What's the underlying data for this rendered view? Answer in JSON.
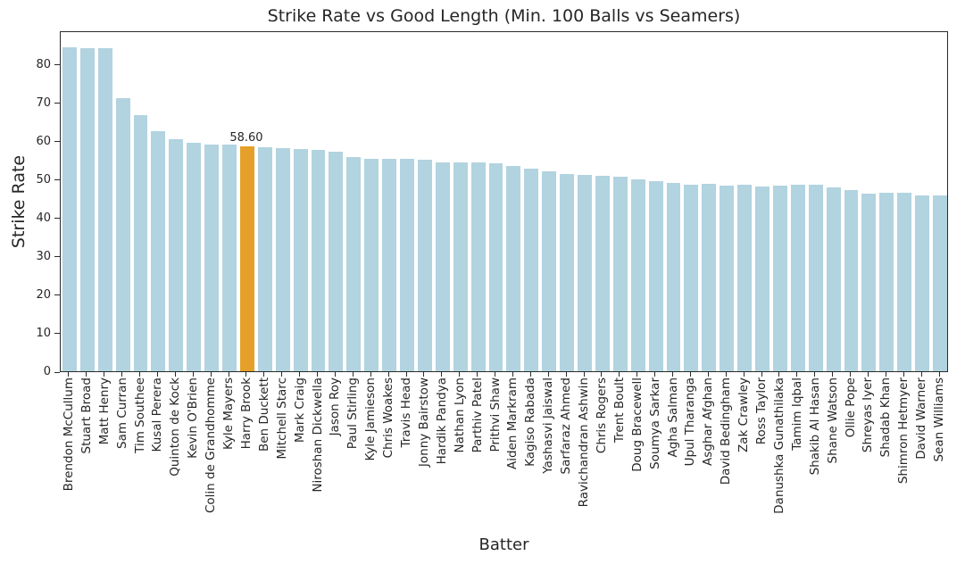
{
  "chart_data": {
    "type": "bar",
    "title": "Strike Rate vs Good Length (Min. 100 Balls vs Seamers)",
    "xlabel": "Batter",
    "ylabel": "Strike Rate",
    "ylim": [
      0,
      88.8
    ],
    "yticks": [
      0,
      10,
      20,
      30,
      40,
      50,
      60,
      70,
      80
    ],
    "grid": false,
    "legend": null,
    "categories": [
      "Brendon McCullum",
      "Stuart Broad",
      "Matt Henry",
      "Sam Curran",
      "Tim Southee",
      "Kusal Perera",
      "Quinton de Kock",
      "Kevin O'Brien",
      "Colin de Grandhomme",
      "Kyle Mayers",
      "Harry Brook",
      "Ben Duckett",
      "Mitchell Starc",
      "Mark Craig",
      "Niroshan Dickwella",
      "Jason Roy",
      "Paul Stirling",
      "Kyle Jamieson",
      "Chris Woakes",
      "Travis Head",
      "Jonny Bairstow",
      "Hardik Pandya",
      "Nathan Lyon",
      "Parthiv Patel",
      "Prithvi Shaw",
      "Aiden Markram",
      "Kagiso Rabada",
      "Yashasvi Jaiswal",
      "Sarfaraz Ahmed",
      "Ravichandran Ashwin",
      "Chris Rogers",
      "Trent Boult",
      "Doug Bracewell",
      "Soumya Sarkar",
      "Agha Salman",
      "Upul Tharanga",
      "Asghar Afghan",
      "David Bedingham",
      "Zak Crawley",
      "Ross Taylor",
      "Danushka Gunathilaka",
      "Tamim Iqbal",
      "Shakib Al Hasan",
      "Shane Watson",
      "Ollie Pope",
      "Shreyas Iyer",
      "Shadab Khan",
      "Shimron Hetmyer",
      "David Warner",
      "Sean Williams"
    ],
    "values": [
      84.5,
      84.2,
      84.1,
      71.2,
      66.8,
      62.6,
      60.4,
      59.6,
      59.1,
      59.0,
      58.6,
      58.4,
      58.2,
      57.9,
      57.6,
      57.3,
      55.7,
      55.3,
      55.3,
      55.4,
      55.2,
      54.4,
      54.5,
      54.5,
      54.1,
      53.4,
      52.7,
      52.0,
      51.4,
      51.1,
      50.9,
      50.7,
      50.0,
      49.6,
      49.1,
      48.7,
      48.9,
      48.4,
      48.5,
      48.1,
      48.3,
      48.5,
      48.5,
      47.9,
      47.1,
      46.3,
      46.5,
      46.4,
      45.7,
      45.8
    ],
    "highlight": {
      "category": "Harry Brook",
      "index": 10,
      "value": 58.6,
      "label": "58.60"
    },
    "colors": {
      "bar": "#b2d3e0",
      "highlight": "#e4a028",
      "text": "#262626",
      "spine": "#2a2a2a"
    }
  }
}
